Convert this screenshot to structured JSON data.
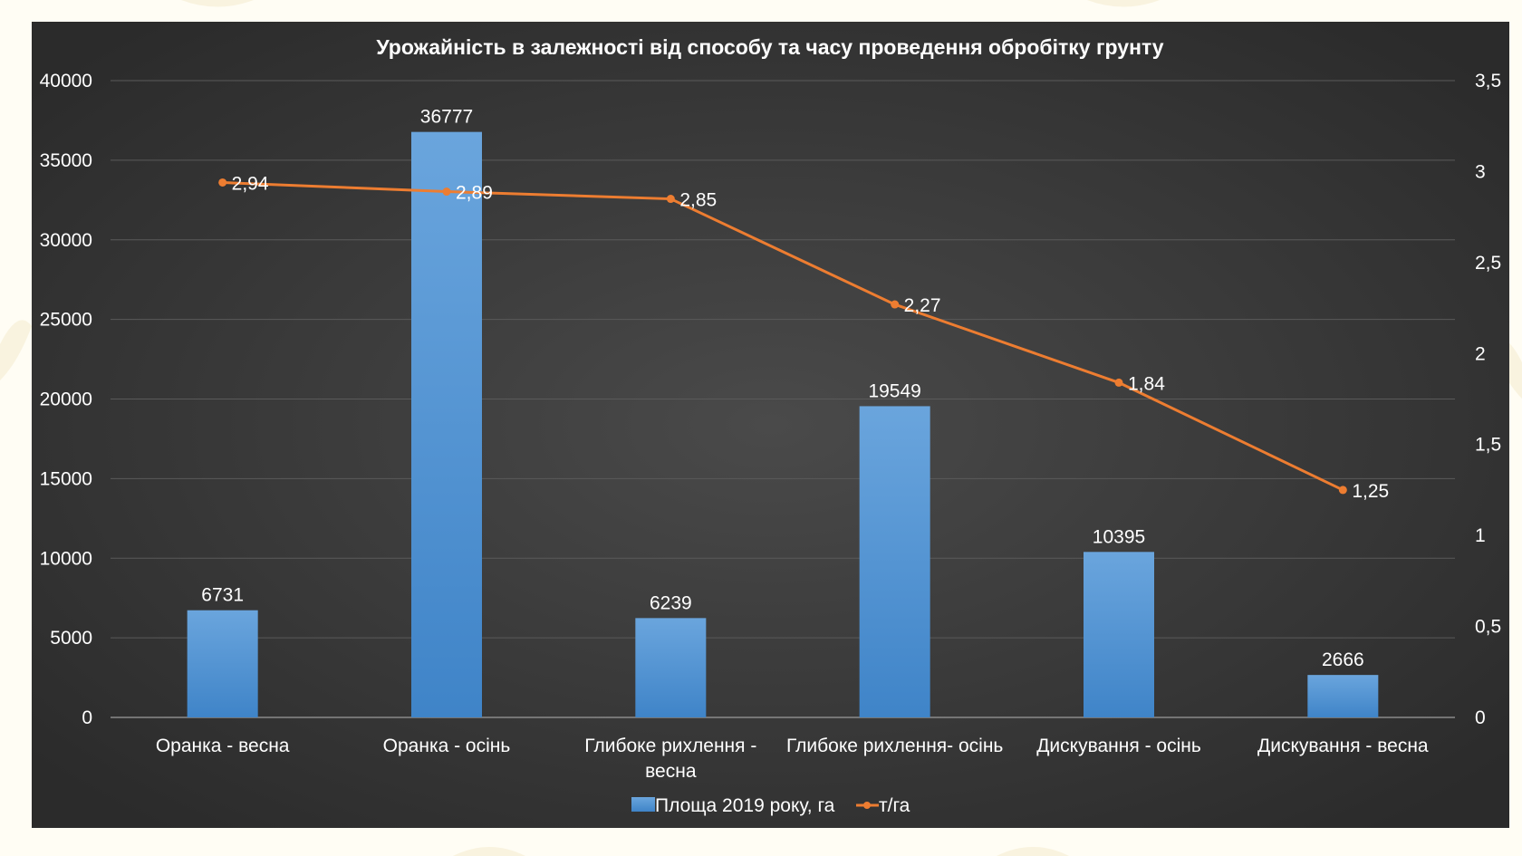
{
  "colors": {
    "bar": "#4d90d3",
    "line": "#ed7d31",
    "background": "#3c3c3c",
    "text": "#ffffff"
  },
  "chart_data": {
    "type": "bar",
    "title": "Урожайність в залежності від способу та часу проведення обробітку грунту",
    "categories": [
      [
        "Оранка - весна"
      ],
      [
        "Оранка - осінь"
      ],
      [
        "Глибоке рихлення -",
        "весна"
      ],
      [
        "Глибоке рихлення- осінь"
      ],
      [
        "Дискування - осінь"
      ],
      [
        "Дискування - весна"
      ]
    ],
    "series": [
      {
        "name": "Площа 2019 року, га",
        "type": "bar",
        "axis": "left",
        "values": [
          6731,
          36777,
          6239,
          19549,
          10395,
          2666
        ],
        "labels": [
          "6731",
          "36777",
          "6239",
          "19549",
          "10395",
          "2666"
        ]
      },
      {
        "name": "т/га",
        "type": "line",
        "axis": "right",
        "values": [
          2.94,
          2.89,
          2.85,
          2.27,
          1.84,
          1.25
        ],
        "labels": [
          "2,94",
          "2,89",
          "2,85",
          "2,27",
          "1,84",
          "1,25"
        ]
      }
    ],
    "y_left": {
      "min": 0,
      "max": 40000,
      "ticks": [
        0,
        5000,
        10000,
        15000,
        20000,
        25000,
        30000,
        35000,
        40000
      ],
      "tick_labels": [
        "0",
        "5000",
        "10000",
        "15000",
        "20000",
        "25000",
        "30000",
        "35000",
        "40000"
      ]
    },
    "y_right": {
      "min": 0,
      "max": 3.5,
      "ticks": [
        0,
        0.5,
        1,
        1.5,
        2,
        2.5,
        3,
        3.5
      ],
      "tick_labels": [
        "0",
        "0,5",
        "1",
        "1,5",
        "2",
        "2,5",
        "3",
        "3,5"
      ]
    },
    "grid": true,
    "legend_position": "bottom"
  }
}
